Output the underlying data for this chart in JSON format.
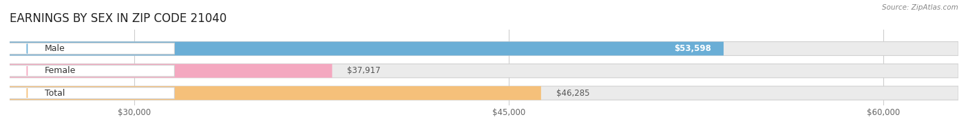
{
  "title": "EARNINGS BY SEX IN ZIP CODE 21040",
  "source": "Source: ZipAtlas.com",
  "categories": [
    "Male",
    "Female",
    "Total"
  ],
  "values": [
    53598,
    37917,
    46285
  ],
  "bar_colors": [
    "#6aaed6",
    "#f4a8c0",
    "#f5c07a"
  ],
  "track_color": "#ebebeb",
  "xlim": [
    25000,
    63000
  ],
  "xmin": 25000,
  "xmax": 63000,
  "xticks": [
    30000,
    45000,
    60000
  ],
  "xtick_labels": [
    "$30,000",
    "$45,000",
    "$60,000"
  ],
  "value_labels": [
    "$53,598",
    "$37,917",
    "$46,285"
  ],
  "value_inside": [
    true,
    false,
    false
  ],
  "title_fontsize": 12,
  "bar_height": 0.62,
  "background_color": "#ffffff",
  "figsize": [
    14.06,
    1.96
  ]
}
